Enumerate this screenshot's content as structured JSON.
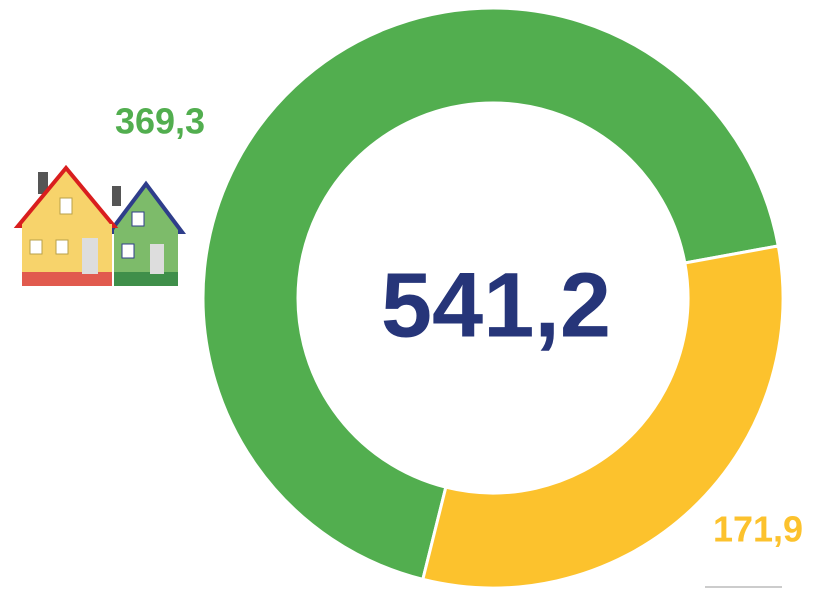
{
  "chart_data": {
    "type": "donut",
    "center_text": "541,2",
    "series": [
      {
        "name": null,
        "values": [
          369.3,
          171.9
        ],
        "value_labels": [
          "369,3",
          "171,9"
        ],
        "colors": [
          "#52ae4f",
          "#fcc22d"
        ]
      }
    ]
  }
}
